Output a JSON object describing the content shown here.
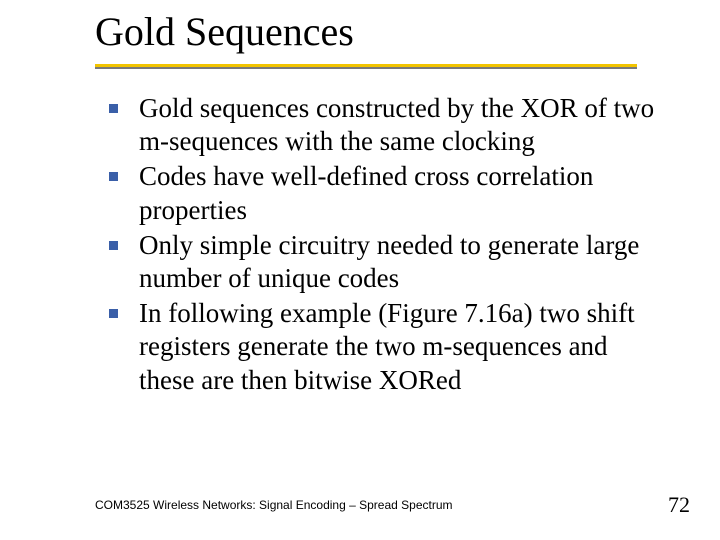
{
  "slide": {
    "title": "Gold Sequences",
    "bullets": [
      "Gold sequences constructed by the XOR of two m-sequences with the same clocking",
      "Codes have well-defined cross correlation properties",
      "Only simple circuitry needed to generate large number of unique codes",
      "In following example (Figure 7.16a) two shift registers generate the two m-sequences and these are then bitwise XORed"
    ],
    "footer": "COM3525 Wireless Networks: Signal Encoding – Spread Spectrum",
    "page_number": "72"
  },
  "style": {
    "title_fontsize": 40,
    "body_fontsize": 27,
    "footer_fontsize": 12,
    "pagenum_fontsize": 22,
    "bullet_color": "#3a5fa8",
    "underline_primary": "#f2c400",
    "underline_secondary": "#7a7a7a",
    "background": "#ffffff",
    "text_color": "#000000"
  }
}
